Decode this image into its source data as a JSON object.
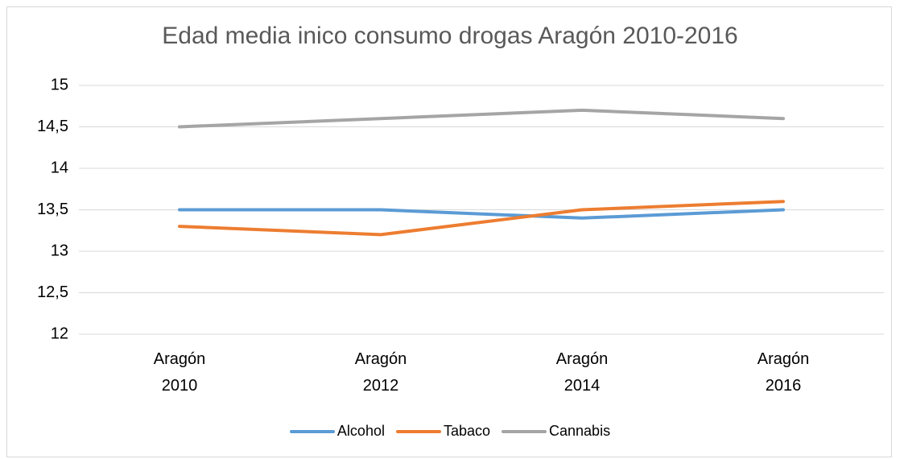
{
  "chart_data": {
    "type": "line",
    "title": "Edad media inico consumo drogas Aragón 2010-2016",
    "categories": [
      "Aragón 2010",
      "Aragón 2012",
      "Aragón 2014",
      "Aragón 2016"
    ],
    "series": [
      {
        "name": "Alcohol",
        "color": "#5b9bd5",
        "values": [
          13.5,
          13.5,
          13.4,
          13.5
        ]
      },
      {
        "name": "Tabaco",
        "color": "#ed7d31",
        "values": [
          13.3,
          13.2,
          13.5,
          13.6
        ]
      },
      {
        "name": "Cannabis",
        "color": "#a5a5a5",
        "values": [
          14.5,
          14.6,
          14.7,
          14.6
        ]
      }
    ],
    "ylim": [
      12,
      15
    ],
    "yticks": [
      12,
      {
        "value": 12.5,
        "label": "12,5"
      },
      13,
      {
        "value": 13.5,
        "label": "13,5"
      },
      14,
      {
        "value": 14.5,
        "label": "14,5"
      },
      15
    ],
    "grid": true,
    "legend": "bottom"
  }
}
